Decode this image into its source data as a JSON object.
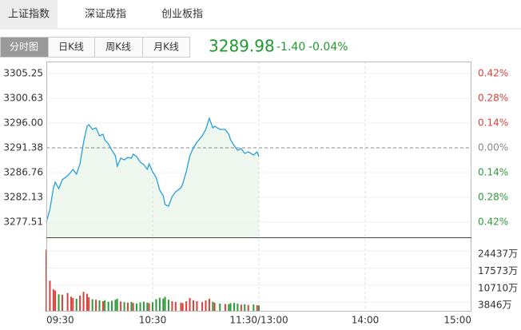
{
  "tabs": [
    "上证指数",
    "深证成指",
    "创业板指"
  ],
  "view_tabs": [
    "分时图",
    "日K线",
    "周K线",
    "月K线"
  ],
  "quote": {
    "price": "3289.98",
    "change": "-1.40",
    "change_pct": "-0.04%"
  },
  "chart_data": [
    {
      "type": "line",
      "color": "#2a9fd6",
      "fill": "#eef8ee",
      "x": [
        0,
        2,
        4,
        5,
        7,
        9,
        12,
        14,
        15,
        17,
        19,
        21,
        23,
        24,
        26,
        28,
        30,
        32,
        33,
        35,
        37,
        39,
        40,
        42,
        44,
        46,
        48,
        49,
        51,
        53,
        55,
        57,
        58,
        60,
        62,
        64,
        66,
        67,
        69,
        71,
        73,
        76,
        77,
        79,
        81,
        83,
        85,
        88,
        90,
        92,
        94,
        95,
        98,
        101,
        103,
        104,
        106,
        108,
        110,
        112,
        114,
        117,
        119,
        120
      ],
      "values": [
        3277.51,
        3279.9,
        3283.92,
        3284.97,
        3283.78,
        3285.42,
        3286.16,
        3286.91,
        3287.35,
        3286.46,
        3288.4,
        3292.42,
        3295.41,
        3295.7,
        3294.81,
        3295.11,
        3293.62,
        3293.91,
        3292.87,
        3292.13,
        3290.93,
        3289.89,
        3287.95,
        3289.44,
        3289.14,
        3289.59,
        3289.44,
        3290.19,
        3289.74,
        3288.7,
        3288.25,
        3287.35,
        3288.4,
        3286.91,
        3285.86,
        3283.48,
        3282.43,
        3280.79,
        3280.5,
        3282.28,
        3283.18,
        3283.92,
        3284.67,
        3286.91,
        3289.89,
        3291.38,
        3292.42,
        3293.62,
        3294.81,
        3296.9,
        3295.11,
        3295.41,
        3294.81,
        3294.81,
        3293.91,
        3292.87,
        3291.83,
        3290.93,
        3291.23,
        3290.34,
        3290.63,
        3290.04,
        3290.63,
        3289.74
      ],
      "xlim": [
        0,
        240
      ],
      "ylim": [
        3274.68,
        3307.48
      ],
      "yticks": [
        3305.25,
        3300.63,
        {
          "value": 3296,
          "label": "3296.00"
        },
        3291.38,
        3286.76,
        3282.13,
        3277.51
      ],
      "y2lim": [
        -0.5058,
        0.4877
      ],
      "y2ticks": [
        {
          "value": 0.42,
          "label": "0.42%"
        },
        {
          "value": 0.28,
          "label": "0.28%"
        },
        {
          "value": 0.14,
          "label": "0.14%"
        },
        {
          "value": 0,
          "label": "0.00%"
        },
        {
          "value": -0.14,
          "label": "0.14%"
        },
        {
          "value": -0.28,
          "label": "0.28%"
        },
        {
          "value": -0.42,
          "label": "0.42%"
        }
      ],
      "up_color": "#d9413b",
      "down_color": "#2e9a3a"
    },
    {
      "type": "bar",
      "up_color": "#d9413b",
      "down_color": "#2e9a3a",
      "x": [
        0,
        2,
        4,
        5,
        7,
        9,
        12,
        14,
        15,
        17,
        19,
        21,
        23,
        24,
        26,
        28,
        30,
        32,
        33,
        35,
        37,
        39,
        40,
        42,
        44,
        46,
        48,
        49,
        51,
        53,
        55,
        57,
        58,
        60,
        62,
        64,
        66,
        67,
        69,
        71,
        73,
        76,
        77,
        79,
        81,
        83,
        85,
        88,
        90,
        92,
        94,
        95,
        98,
        101,
        103,
        104,
        106,
        108,
        110,
        112,
        114,
        117,
        119,
        120
      ],
      "values": [
        25000,
        12500,
        9000,
        8500,
        7000,
        6800,
        7500,
        6000,
        5500,
        5200,
        6500,
        8000,
        7200,
        5800,
        5000,
        4800,
        4500,
        4200,
        4600,
        4000,
        4400,
        4800,
        5200,
        4100,
        3800,
        3600,
        3900,
        3500,
        3300,
        3700,
        4000,
        3600,
        3400,
        3800,
        5000,
        5600,
        5300,
        6000,
        4800,
        4200,
        3900,
        3600,
        3400,
        4200,
        5500,
        4600,
        4200,
        3800,
        4500,
        5200,
        4000,
        3600,
        3300,
        3100,
        3000,
        3400,
        3500,
        3200,
        2800,
        3000,
        2700,
        2900,
        2600,
        2500
      ],
      "xlim": [
        0,
        240
      ],
      "xticks": [
        {
          "value": 0,
          "label": "09:30"
        },
        {
          "value": 60,
          "label": "10:30"
        },
        {
          "value": 120,
          "label": "11:30/13:00"
        },
        {
          "value": 180,
          "label": "14:00"
        },
        {
          "value": 240,
          "label": "15:00"
        }
      ],
      "ylim": [
        0,
        30000
      ],
      "yticks": [
        {
          "value": 24437,
          "label": "24437万"
        },
        {
          "value": 17573,
          "label": "17573万"
        },
        {
          "value": 10710,
          "label": "10710万"
        },
        {
          "value": 3846,
          "label": "3846万"
        }
      ]
    }
  ]
}
